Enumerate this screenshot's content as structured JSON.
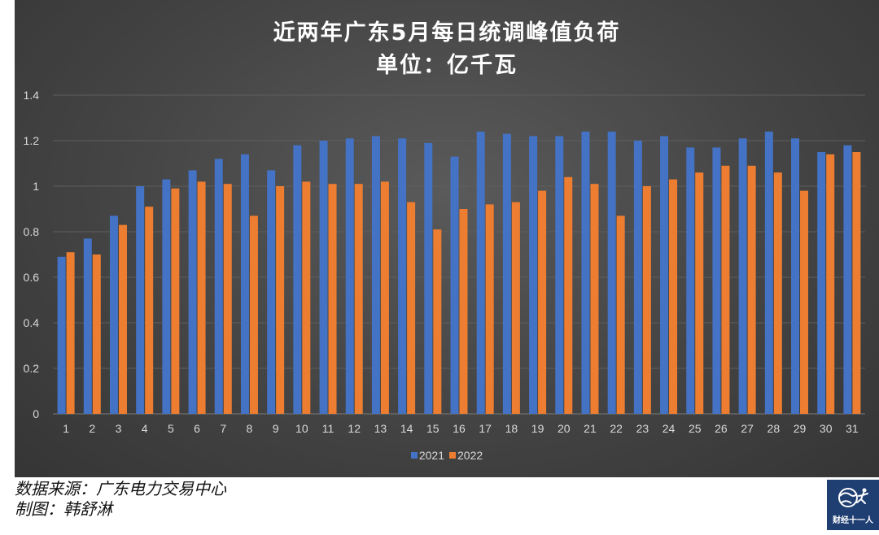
{
  "chart_data": {
    "type": "bar",
    "title": "近两年广东5月每日统调峰值负荷",
    "subtitle": "单位：亿千瓦",
    "categories": [
      "1",
      "2",
      "3",
      "4",
      "5",
      "6",
      "7",
      "8",
      "9",
      "10",
      "11",
      "12",
      "13",
      "14",
      "15",
      "16",
      "17",
      "18",
      "19",
      "20",
      "21",
      "22",
      "23",
      "24",
      "25",
      "26",
      "27",
      "28",
      "29",
      "30",
      "31"
    ],
    "series": [
      {
        "name": "2021",
        "color": "#4472c4",
        "values": [
          0.69,
          0.77,
          0.87,
          1.0,
          1.03,
          1.07,
          1.12,
          1.14,
          1.07,
          1.18,
          1.2,
          1.21,
          1.22,
          1.21,
          1.19,
          1.13,
          1.24,
          1.23,
          1.22,
          1.22,
          1.24,
          1.24,
          1.2,
          1.22,
          1.17,
          1.17,
          1.21,
          1.24,
          1.21,
          1.15,
          1.18
        ]
      },
      {
        "name": "2022",
        "color": "#ed7d31",
        "values": [
          0.71,
          0.7,
          0.83,
          0.91,
          0.99,
          1.02,
          1.01,
          0.87,
          1.0,
          1.02,
          1.01,
          1.01,
          1.02,
          0.93,
          0.81,
          0.9,
          0.92,
          0.93,
          0.98,
          1.04,
          1.01,
          0.87,
          1.0,
          1.03,
          1.06,
          1.09,
          1.09,
          1.06,
          0.98,
          1.14,
          1.15
        ]
      }
    ],
    "yticks": [
      "0",
      "0.2",
      "0.4",
      "0.6",
      "0.8",
      "1",
      "1.2",
      "1.4"
    ],
    "ylim": [
      0,
      1.4
    ],
    "grid": true,
    "legend_position": "bottom"
  },
  "footer": {
    "source": "数据来源：广东电力交易中心",
    "author": "制图：韩舒淋"
  },
  "logo": {
    "text": "财经十一人",
    "icon": "globe-runner-icon"
  },
  "colors": {
    "background": "#444444",
    "gridline": "#5e5e5e",
    "axis_text": "#d9d9d9"
  }
}
